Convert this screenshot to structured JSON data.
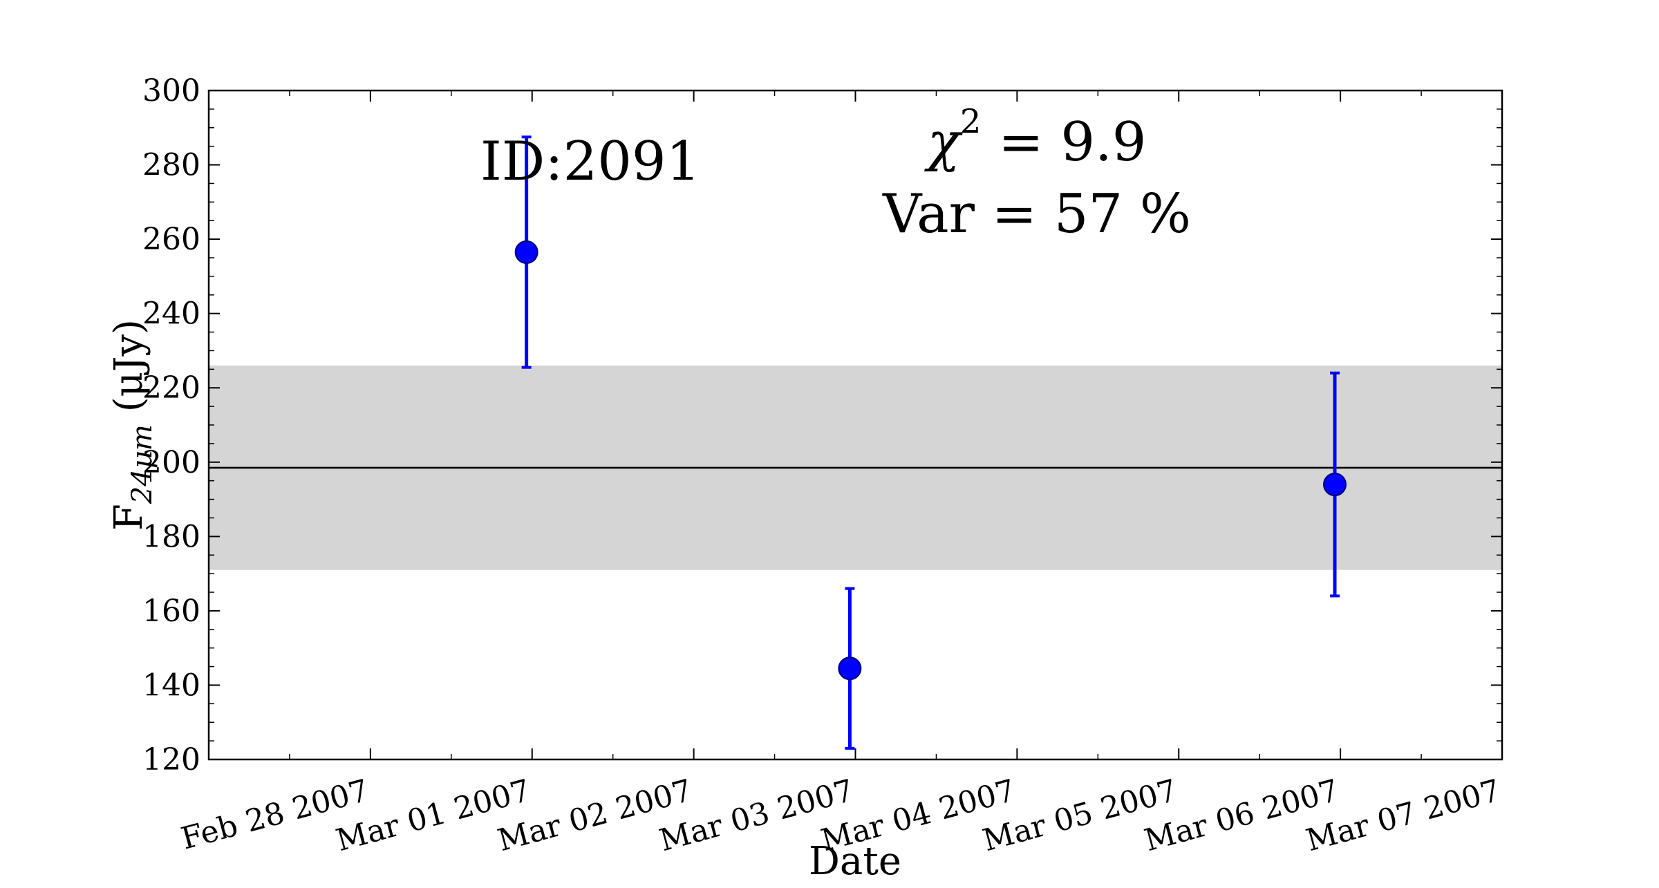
{
  "chart_data": {
    "type": "scatter",
    "title": "",
    "xlabel": "Date",
    "ylabel": {
      "base": "F",
      "subscript": "24μm",
      "units": "(μJy)"
    },
    "xlim": [
      "2007-02-27T00:00",
      "2007-03-07T00:00"
    ],
    "ylim": [
      120,
      300
    ],
    "yticks": [
      120,
      140,
      160,
      180,
      200,
      220,
      240,
      260,
      280,
      300
    ],
    "xticks": [
      {
        "date": "2007-02-28T00:00",
        "label": "Feb 28 2007"
      },
      {
        "date": "2007-03-01T00:00",
        "label": "Mar 01 2007"
      },
      {
        "date": "2007-03-02T00:00",
        "label": "Mar 02 2007"
      },
      {
        "date": "2007-03-03T00:00",
        "label": "Mar 03 2007"
      },
      {
        "date": "2007-03-04T00:00",
        "label": "Mar 04 2007"
      },
      {
        "date": "2007-03-05T00:00",
        "label": "Mar 05 2007"
      },
      {
        "date": "2007-03-06T00:00",
        "label": "Mar 06 2007"
      },
      {
        "date": "2007-03-07T00:00",
        "label": "Mar 07 2007"
      }
    ],
    "points": [
      {
        "date": "2007-02-28T23:10",
        "y": 256.5,
        "yerr": 31
      },
      {
        "date": "2007-03-02T23:10",
        "y": 144.5,
        "yerr": 21.5
      },
      {
        "date": "2007-03-05T23:10",
        "y": 194,
        "yerr": 30
      }
    ],
    "mean_line": 198.5,
    "band": [
      171,
      226
    ],
    "grid": false,
    "colors": {
      "points": "#0000ff",
      "band": "#d5d5d5",
      "mean_line": "#000000"
    },
    "annotations": {
      "id_label": "ID:2091",
      "chi2_symbol": "χ",
      "chi2_exponent": "2",
      "chi2_value": " = 9.9",
      "var_label": "Var = 57 %"
    }
  }
}
